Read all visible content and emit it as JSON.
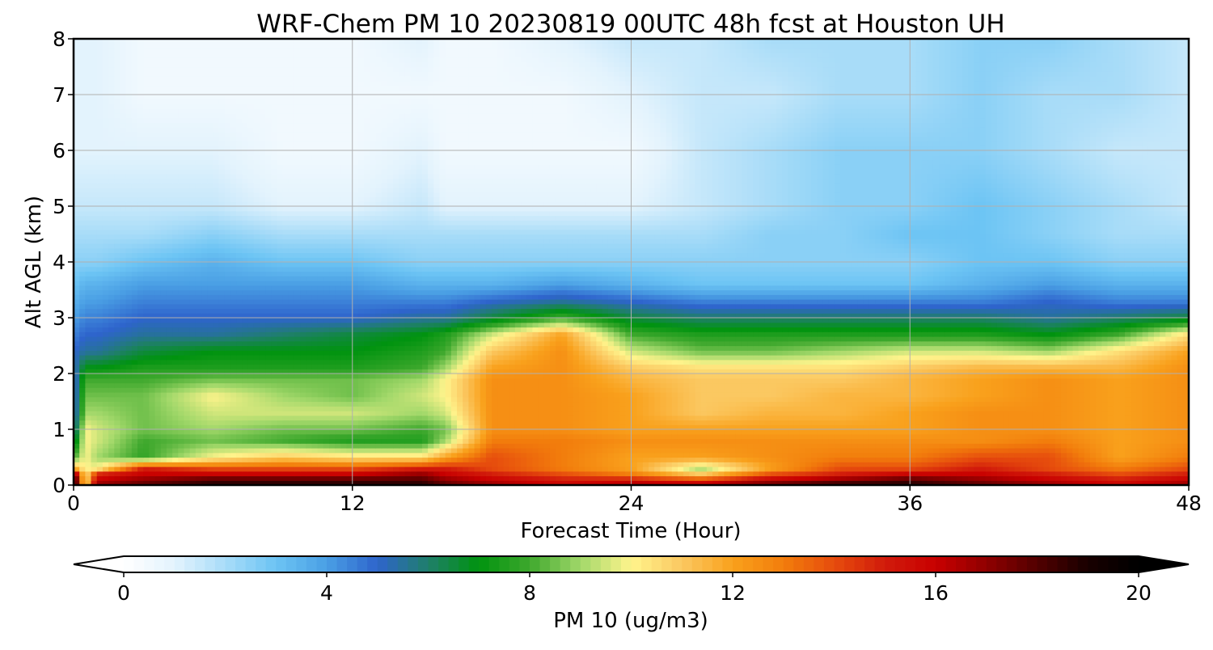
{
  "chart_data": {
    "type": "heatmap",
    "title": "WRF-Chem PM 10  20230819 00UTC 48h fcst at Houston UH",
    "xlabel": "Forecast Time (Hour)",
    "ylabel": "Alt AGL (km)",
    "xlim": [
      0,
      48
    ],
    "ylim": [
      0,
      8
    ],
    "xticks": [
      0,
      12,
      24,
      36,
      48
    ],
    "yticks": [
      0,
      1,
      2,
      3,
      4,
      5,
      6,
      7,
      8
    ],
    "grid": true,
    "colorbar": {
      "label": "PM 10  (ug/m3)",
      "range": [
        0,
        20
      ],
      "ticks": [
        0,
        4,
        8,
        12,
        16,
        20
      ],
      "extend": "both",
      "palette": [
        [
          0,
          "#ffffff"
        ],
        [
          1,
          "#e3f3fd"
        ],
        [
          2,
          "#a8dcf8"
        ],
        [
          3,
          "#6cc4f4"
        ],
        [
          4,
          "#4a9fe4"
        ],
        [
          5,
          "#2e64cc"
        ],
        [
          6,
          "#1f7f6a"
        ],
        [
          7,
          "#00930f"
        ],
        [
          8,
          "#3ea82d"
        ],
        [
          9,
          "#a2d86a"
        ],
        [
          10,
          "#fff48c"
        ],
        [
          11,
          "#fbc861"
        ],
        [
          12,
          "#f9a11c"
        ],
        [
          13,
          "#f27d0c"
        ],
        [
          14,
          "#e64c0d"
        ],
        [
          15,
          "#d11b0b"
        ],
        [
          16,
          "#c80000"
        ],
        [
          17,
          "#8f0000"
        ],
        [
          18,
          "#520000"
        ],
        [
          19,
          "#180000"
        ],
        [
          20,
          "#000000"
        ]
      ]
    },
    "x": [
      0,
      0.5,
      1,
      3,
      6,
      9,
      12,
      15,
      16,
      18,
      21,
      24,
      27,
      30,
      33,
      36,
      39,
      42,
      45,
      48
    ],
    "y": [
      0,
      0.1,
      0.2,
      0.3,
      0.5,
      0.8,
      1,
      1.3,
      1.6,
      1.9,
      2.1,
      2.4,
      2.7,
      3,
      3.3,
      3.6,
      4,
      4.5,
      5,
      6,
      7,
      8
    ],
    "z": [
      [
        20,
        10,
        17,
        18,
        19,
        19,
        19,
        19,
        18,
        17,
        16,
        17,
        17,
        18,
        19,
        19,
        18,
        17,
        16,
        17
      ],
      [
        20,
        10,
        16,
        17,
        18,
        18,
        18,
        18,
        17,
        16,
        15,
        15,
        14,
        16,
        17,
        18,
        17,
        16,
        15,
        16
      ],
      [
        18,
        10,
        15,
        16,
        16,
        16,
        16,
        17,
        16,
        15,
        14,
        13,
        11,
        14,
        15,
        16,
        16,
        15,
        14,
        15
      ],
      [
        12,
        10,
        10,
        15,
        14,
        14,
        14,
        15,
        15,
        14,
        13,
        12,
        9,
        12,
        14,
        14,
        15,
        14,
        13,
        14
      ],
      [
        8,
        10,
        9,
        7.8,
        10,
        11,
        10.5,
        10.5,
        12,
        14,
        13,
        12,
        12,
        12.5,
        13,
        13,
        14,
        14,
        12,
        13
      ],
      [
        6,
        10,
        9.5,
        8,
        8.5,
        8,
        7.5,
        7.5,
        9,
        13,
        13,
        12.5,
        12.5,
        12.5,
        12.5,
        12.5,
        12.5,
        13,
        12,
        12.5
      ],
      [
        5,
        10,
        9.5,
        8.5,
        9,
        8.5,
        8.5,
        8,
        8.5,
        12.5,
        12.5,
        12,
        12,
        12,
        12,
        12,
        12.5,
        12.5,
        12,
        12.5
      ],
      [
        4.5,
        9,
        9,
        8.5,
        9.5,
        9.5,
        9.5,
        9,
        9.5,
        12.5,
        12.5,
        12,
        11,
        11.5,
        11.5,
        12,
        12.5,
        12.5,
        12,
        12.5
      ],
      [
        4.5,
        8.5,
        8.5,
        8.5,
        10,
        9,
        8.5,
        9.5,
        10,
        12.5,
        12.5,
        12,
        11,
        11,
        11.5,
        11.5,
        12,
        12.5,
        12,
        12.5
      ],
      [
        4.5,
        8,
        8,
        8,
        8.5,
        8.5,
        8.5,
        9,
        10,
        12.5,
        12.5,
        11.5,
        11,
        11,
        11,
        11.5,
        12,
        12.5,
        12,
        12.5
      ],
      [
        5,
        7,
        7,
        7.5,
        7.5,
        7.5,
        7.5,
        8,
        9,
        12,
        12.5,
        11,
        10.5,
        10.5,
        10.5,
        11,
        11.5,
        11.5,
        11.5,
        12.5
      ],
      [
        5,
        5.5,
        5.5,
        6.5,
        7,
        7,
        7,
        7.5,
        8,
        11,
        12.5,
        9.5,
        8.5,
        8.5,
        9,
        9.5,
        9.5,
        9,
        10.5,
        12
      ],
      [
        4.5,
        5,
        5,
        5.5,
        5.5,
        6,
        6.5,
        7,
        7.5,
        9.5,
        12,
        8,
        7.5,
        7.5,
        7.5,
        7.5,
        7.5,
        7,
        8,
        10.5
      ],
      [
        4,
        4.5,
        4.5,
        5,
        5,
        5,
        5,
        5.5,
        5.5,
        6.5,
        8,
        6.5,
        6,
        6,
        6,
        6,
        6,
        5.5,
        6,
        6.5
      ],
      [
        3.5,
        4,
        4,
        4.5,
        4.5,
        4.5,
        4.5,
        4.5,
        4.5,
        5,
        5.5,
        5,
        4.5,
        4.5,
        4.5,
        4.5,
        4.5,
        5,
        4.5,
        4.5
      ],
      [
        3,
        3.5,
        3.5,
        4,
        4,
        4,
        4,
        3.5,
        3.5,
        3.5,
        4,
        3.5,
        3,
        3,
        3,
        3,
        3.5,
        4,
        3.5,
        3.5
      ],
      [
        2.5,
        2.5,
        2.5,
        3,
        3.5,
        3,
        3,
        2.5,
        2.5,
        2.5,
        2.5,
        2.5,
        2.5,
        2.5,
        2.5,
        2.5,
        3,
        3,
        2.5,
        2.5
      ],
      [
        2,
        2,
        2,
        2,
        2.5,
        2,
        2,
        2,
        2,
        2,
        2,
        2,
        2,
        2.5,
        2.5,
        3,
        3,
        2.5,
        2,
        2
      ],
      [
        1.5,
        1.5,
        1.5,
        1.5,
        1.5,
        1,
        1,
        1.5,
        1,
        1,
        1,
        1,
        1.5,
        2,
        2.5,
        2.5,
        3,
        2.5,
        2,
        1.5
      ],
      [
        1,
        1,
        1,
        1,
        1,
        0.5,
        0.5,
        1,
        0.5,
        0.5,
        0.5,
        0.5,
        1.5,
        2,
        2.5,
        2.5,
        2.5,
        2,
        1.5,
        1.5
      ],
      [
        1,
        1,
        1,
        0.5,
        0.5,
        0.5,
        0.5,
        0.5,
        0.5,
        0.5,
        0.5,
        1,
        1.5,
        1.5,
        2,
        2,
        2.5,
        2,
        2,
        1.5
      ],
      [
        1,
        1,
        1,
        0.5,
        0.5,
        0.5,
        0.5,
        1,
        0.5,
        0.5,
        1,
        1.5,
        1.5,
        2,
        2,
        2,
        2.5,
        2.5,
        2,
        1.5
      ]
    ]
  }
}
